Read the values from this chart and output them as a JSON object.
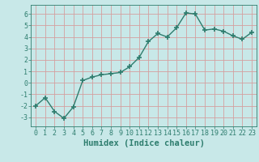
{
  "x": [
    0,
    1,
    2,
    3,
    4,
    5,
    6,
    7,
    8,
    9,
    10,
    11,
    12,
    13,
    14,
    15,
    16,
    17,
    18,
    19,
    20,
    21,
    22,
    23
  ],
  "y": [
    -2.0,
    -1.3,
    -2.5,
    -3.1,
    -2.1,
    0.2,
    0.5,
    0.7,
    0.8,
    0.9,
    1.4,
    2.2,
    3.6,
    4.3,
    4.0,
    4.8,
    6.1,
    6.0,
    4.6,
    4.7,
    4.5,
    4.1,
    3.8,
    4.4
  ],
  "line_color": "#2e7d6e",
  "marker": "+",
  "markersize": 4,
  "linewidth": 1.0,
  "bg_color": "#c8e8e8",
  "grid_color": "#d4a0a0",
  "xlabel": "Humidex (Indice chaleur)",
  "xlim": [
    -0.5,
    23.5
  ],
  "ylim": [
    -3.8,
    6.8
  ],
  "yticks": [
    -3,
    -2,
    -1,
    0,
    1,
    2,
    3,
    4,
    5,
    6
  ],
  "xticks": [
    0,
    1,
    2,
    3,
    4,
    5,
    6,
    7,
    8,
    9,
    10,
    11,
    12,
    13,
    14,
    15,
    16,
    17,
    18,
    19,
    20,
    21,
    22,
    23
  ],
  "tick_fontsize": 6,
  "xlabel_fontsize": 7.5
}
